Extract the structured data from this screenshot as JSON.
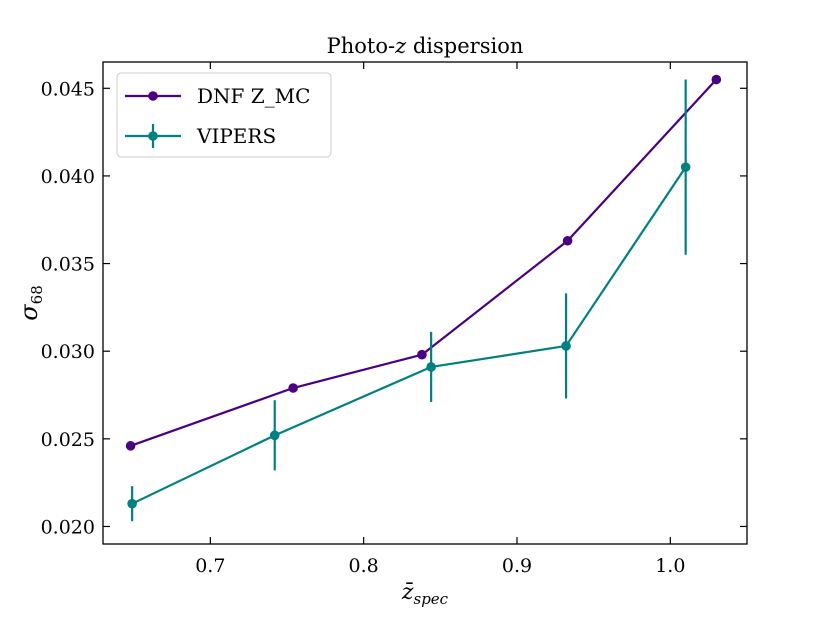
{
  "chart_data": {
    "type": "line",
    "title": {
      "prefix": "Photo-",
      "var": "z",
      "suffix": " dispersion"
    },
    "xlabel": {
      "base": "z̄",
      "sub": "spec"
    },
    "ylabel": {
      "base": "σ",
      "sub": "68"
    },
    "xlim": [
      0.63,
      1.05
    ],
    "ylim": [
      0.019,
      0.0465
    ],
    "xticks": [
      0.7,
      0.8,
      0.9,
      1.0
    ],
    "xtick_labels": [
      "0.7",
      "0.8",
      "0.9",
      "1.0"
    ],
    "yticks": [
      0.02,
      0.025,
      0.03,
      0.035,
      0.04,
      0.045
    ],
    "ytick_labels": [
      "0.020",
      "0.025",
      "0.030",
      "0.035",
      "0.040",
      "0.045"
    ],
    "grid": false,
    "legend_position": "top-left",
    "series": [
      {
        "name": "DNF Z_MC",
        "color": "#4b0082",
        "x": [
          0.648,
          0.754,
          0.838,
          0.933,
          1.03
        ],
        "y": [
          0.0246,
          0.0279,
          0.0298,
          0.0363,
          0.0455
        ]
      },
      {
        "name": "VIPERS",
        "color": "#008080",
        "x": [
          0.649,
          0.742,
          0.844,
          0.932,
          1.01
        ],
        "y": [
          0.0213,
          0.0252,
          0.0291,
          0.0303,
          0.0405
        ],
        "yerr": [
          0.001,
          0.002,
          0.002,
          0.003,
          0.005
        ]
      }
    ]
  }
}
